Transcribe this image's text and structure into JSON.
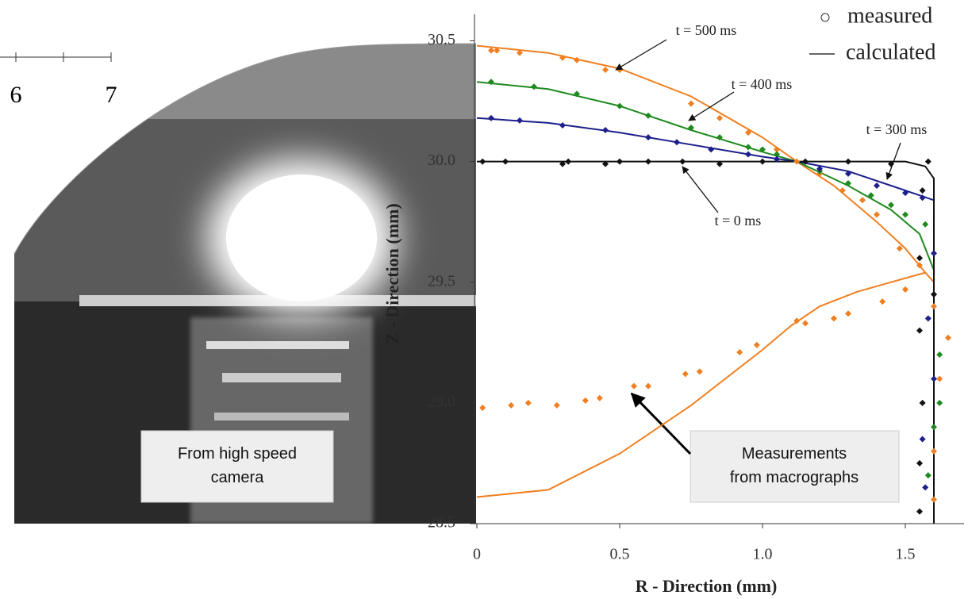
{
  "chart_data": {
    "type": "line",
    "x_label": "R - Direction (mm)",
    "y_label": "Z - Direction (mm)",
    "xlim": [
      0,
      1.7
    ],
    "ylim": [
      28.5,
      30.61
    ],
    "xticks": [
      0,
      0.5,
      {
        "value": 1.0,
        "label": "1.0"
      },
      1.5
    ],
    "yticks": [
      28.5,
      {
        "value": 29.0,
        "label": "29.0"
      },
      29.5,
      {
        "value": 30.0,
        "label": "30.0"
      },
      30.5
    ],
    "legend_labels": [
      "measured",
      "calculated"
    ],
    "series": [
      {
        "name": "t = 500 ms",
        "color": "#f07f20",
        "line": {
          "x": [
            0,
            0.25,
            0.5,
            0.75,
            1.0,
            1.12,
            1.25,
            1.4,
            1.5,
            1.57,
            1.6,
            1.6,
            null,
            1.57,
            1.45,
            1.33,
            1.2,
            1.1,
            1.0,
            0.75,
            0.5,
            0.25,
            0
          ],
          "values": [
            30.48,
            30.45,
            30.385,
            30.27,
            30.1,
            30.0,
            29.9,
            29.75,
            29.64,
            29.54,
            29.5,
            28.5,
            null,
            29.54,
            29.5,
            29.46,
            29.4,
            29.32,
            29.22,
            28.99,
            28.79,
            28.64,
            28.61
          ]
        },
        "points": {
          "x": [
            0.05,
            0.07,
            0.15,
            0.3,
            0.35,
            0.45,
            0.5,
            0.75,
            0.85,
            0.95,
            1.05,
            1.12,
            1.2,
            1.28,
            1.35,
            1.4,
            1.48,
            1.55,
            1.5,
            1.42,
            1.3,
            1.25,
            1.12,
            1.15,
            0.98,
            0.92,
            0.78,
            0.73,
            0.6,
            0.55,
            0.43,
            0.38,
            0.28,
            0.18,
            0.12,
            0.02,
            1.6,
            1.62,
            1.6,
            1.65,
            1.6
          ],
          "values": [
            30.46,
            30.46,
            30.45,
            30.43,
            30.42,
            30.38,
            30.38,
            30.24,
            30.18,
            30.12,
            30.05,
            30.0,
            29.95,
            29.88,
            29.84,
            29.78,
            29.64,
            29.57,
            29.47,
            29.42,
            29.37,
            29.35,
            29.34,
            29.33,
            29.24,
            29.21,
            29.13,
            29.12,
            29.07,
            29.07,
            29.02,
            29.01,
            28.99,
            29.0,
            28.99,
            28.98,
            29.4,
            29.1,
            28.8,
            29.27,
            28.6
          ]
        }
      },
      {
        "name": "t = 400 ms",
        "color": "#1f8a1f",
        "line": {
          "x": [
            0,
            0.25,
            0.5,
            0.75,
            1.0,
            1.12,
            1.3,
            1.45,
            1.55,
            1.6,
            1.6
          ],
          "values": [
            30.33,
            30.3,
            30.23,
            30.13,
            30.04,
            30.0,
            29.9,
            29.8,
            29.7,
            29.55,
            28.5
          ]
        },
        "points": {
          "x": [
            0.05,
            0.2,
            0.35,
            0.5,
            0.6,
            0.75,
            0.85,
            0.95,
            1.0,
            1.05,
            1.2,
            1.3,
            1.38,
            1.45,
            1.5,
            1.57,
            1.6,
            1.62,
            1.6,
            1.58,
            1.62
          ],
          "values": [
            30.33,
            30.31,
            30.28,
            30.23,
            30.19,
            30.14,
            30.1,
            30.06,
            30.05,
            30.03,
            29.96,
            29.91,
            29.86,
            29.82,
            29.78,
            29.74,
            29.45,
            29.2,
            28.9,
            28.7,
            29.0
          ]
        }
      },
      {
        "name": "t = 300 ms",
        "color": "#1c1f8c",
        "line": {
          "x": [
            0,
            0.25,
            0.5,
            0.75,
            1.0,
            1.12,
            1.3,
            1.45,
            1.55,
            1.6,
            1.6
          ],
          "values": [
            30.18,
            30.16,
            30.12,
            30.07,
            30.02,
            30.0,
            29.96,
            29.9,
            29.86,
            29.84,
            28.5
          ]
        },
        "points": {
          "x": [
            0.05,
            0.15,
            0.3,
            0.45,
            0.6,
            0.7,
            0.82,
            0.95,
            1.05,
            1.2,
            1.3,
            1.4,
            1.5,
            1.56,
            1.6,
            1.58,
            1.6,
            1.56,
            1.57
          ],
          "values": [
            30.18,
            30.17,
            30.15,
            30.13,
            30.1,
            30.08,
            30.05,
            30.03,
            30.01,
            29.97,
            29.95,
            29.9,
            29.87,
            29.85,
            29.62,
            29.35,
            29.1,
            28.85,
            28.65
          ]
        }
      },
      {
        "name": "t = 0 ms",
        "color": "#111111",
        "line": {
          "x": [
            0,
            1.5,
            1.57,
            1.6,
            1.6
          ],
          "values": [
            30.0,
            30.0,
            29.98,
            29.93,
            28.5
          ]
        },
        "points": {
          "x": [
            0.02,
            0.1,
            0.3,
            0.32,
            0.45,
            0.5,
            0.6,
            0.72,
            0.85,
            1.0,
            1.15,
            1.3,
            1.45,
            1.58,
            1.56,
            1.55,
            1.6,
            1.55,
            1.56,
            1.55,
            1.55
          ],
          "values": [
            30.0,
            30.0,
            29.99,
            30.0,
            29.99,
            30.0,
            30.0,
            30.0,
            29.99,
            30.0,
            30.0,
            30.0,
            29.99,
            30.0,
            29.88,
            29.6,
            29.45,
            29.3,
            29.0,
            28.75,
            28.55
          ]
        }
      }
    ],
    "image_scale_labels": [
      "6",
      "7"
    ],
    "callouts": [
      "From high speed camera",
      "Measurements from macrographs"
    ]
  }
}
